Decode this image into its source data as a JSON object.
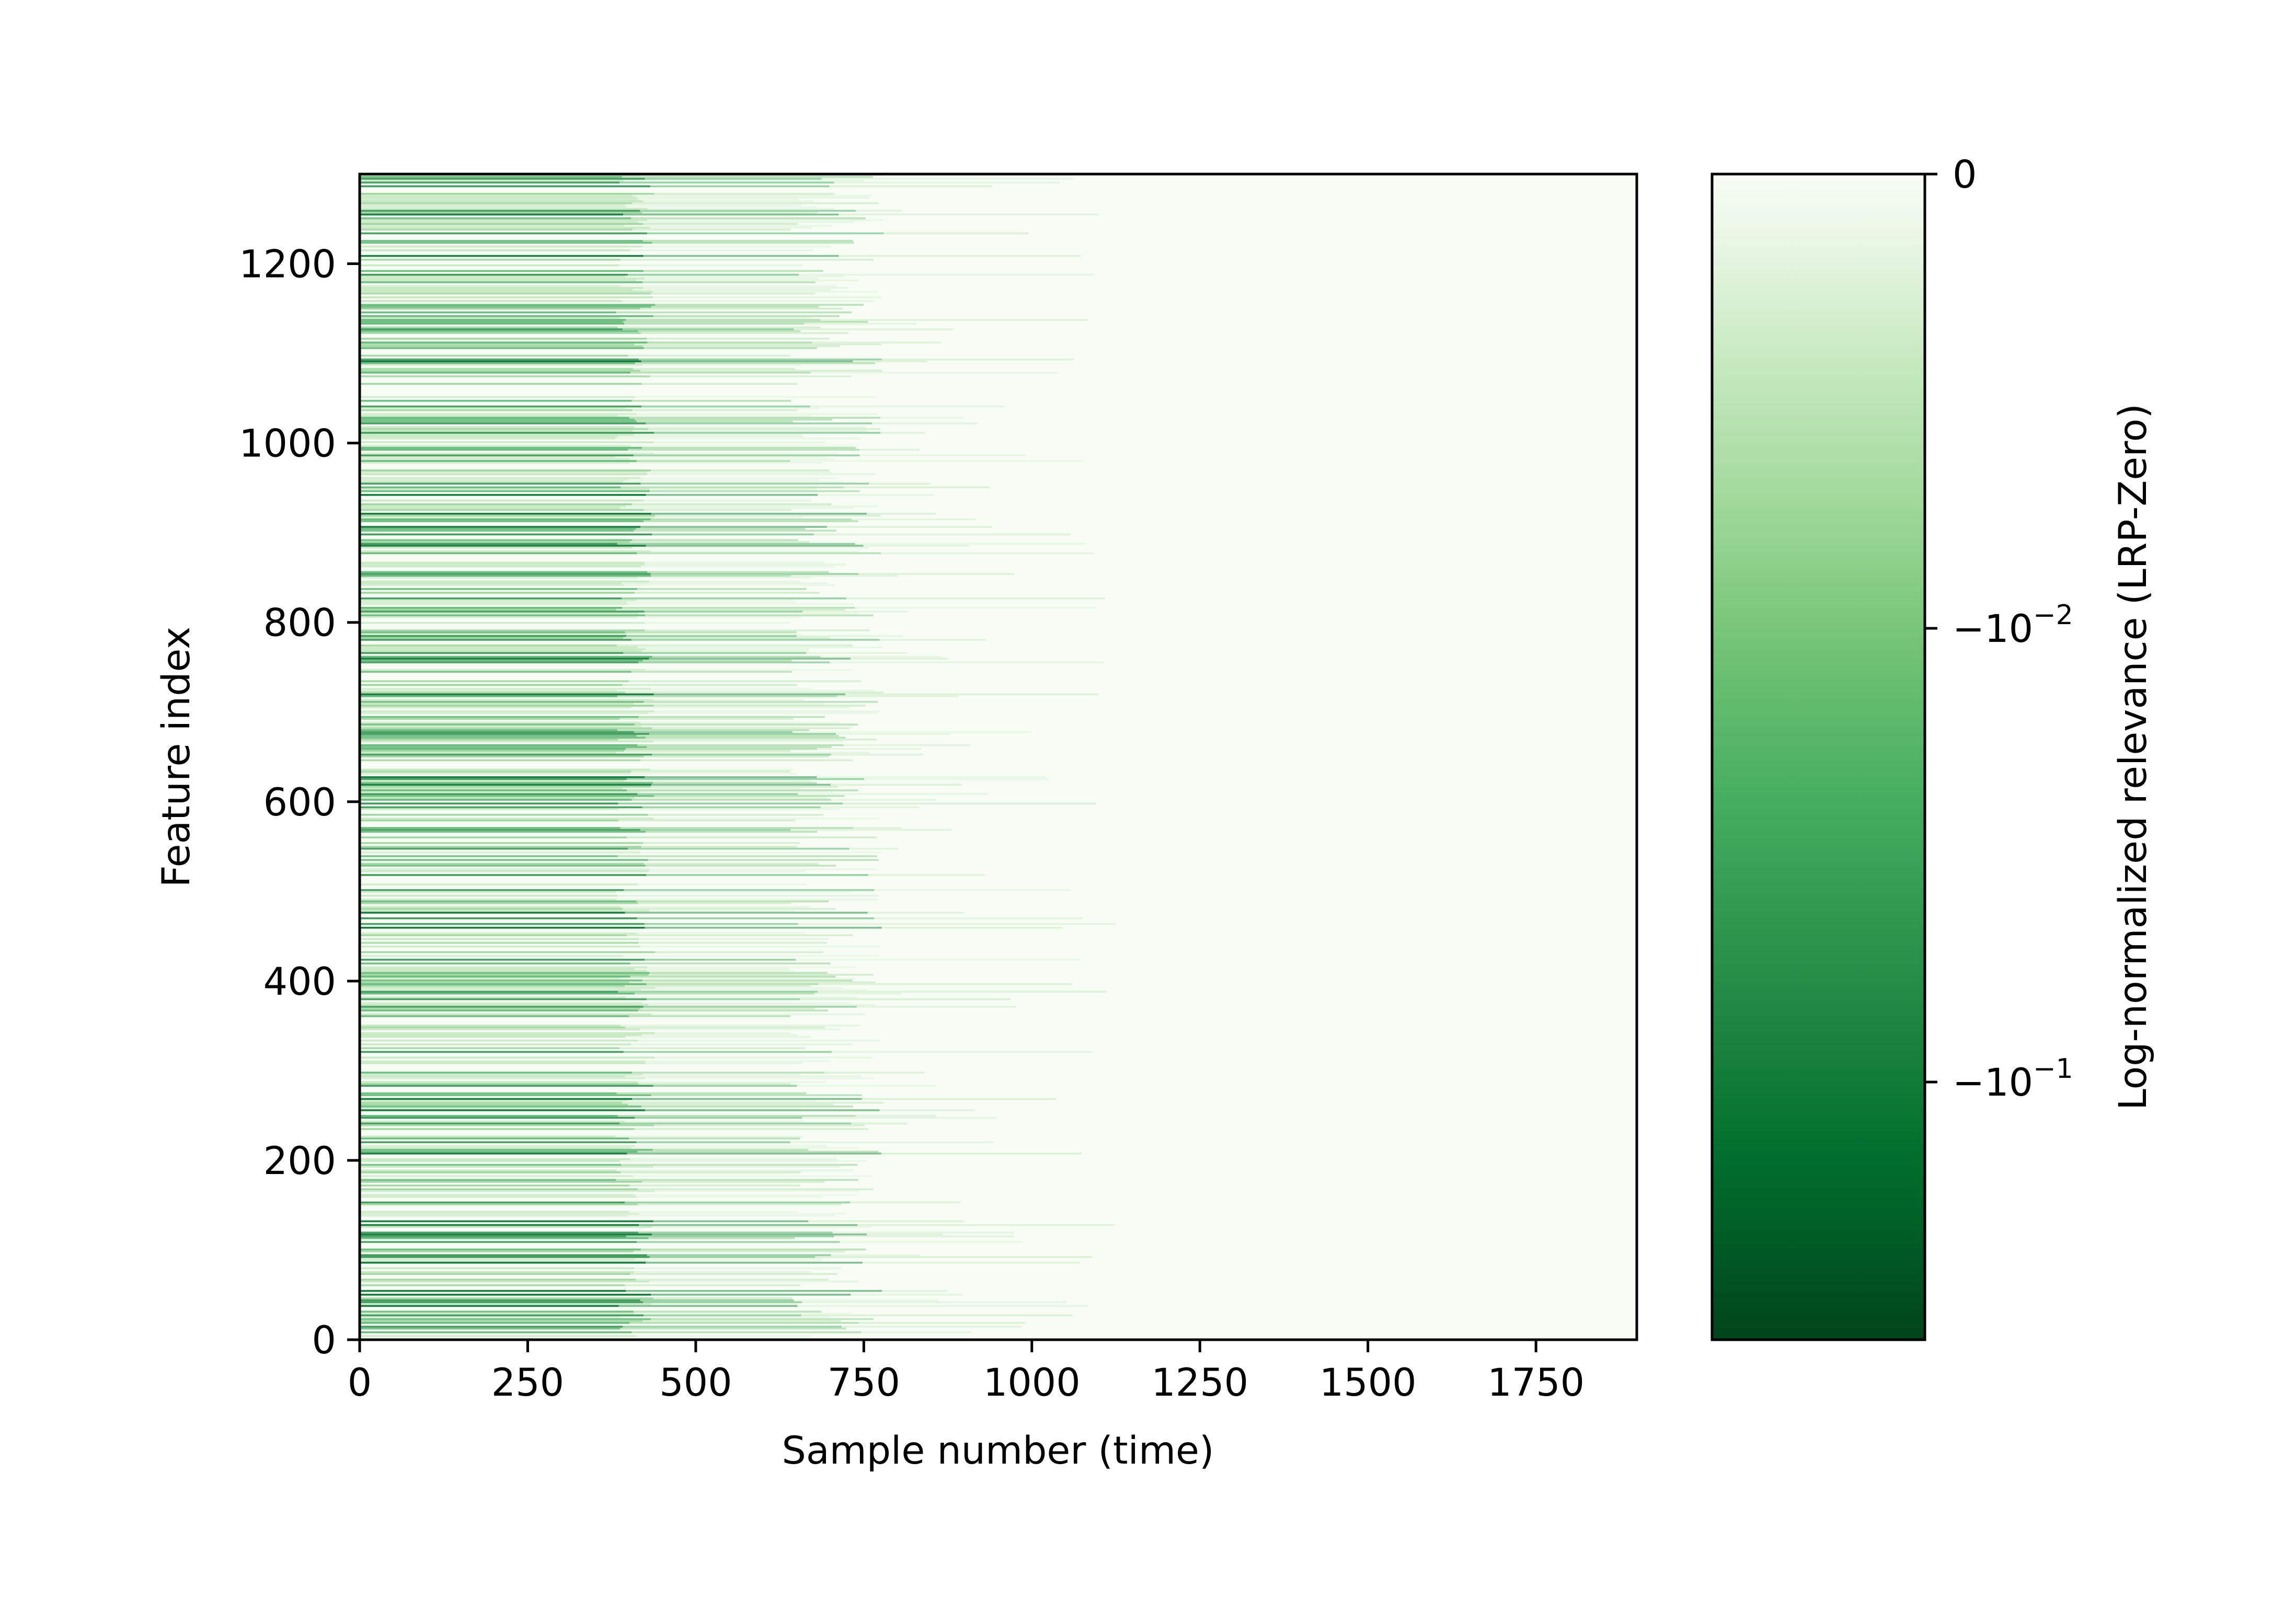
{
  "chart_data": {
    "type": "heatmap",
    "title": "",
    "xlabel": "Sample number (time)",
    "ylabel": "Feature index",
    "xlim": [
      0,
      1900
    ],
    "ylim": [
      0,
      1300
    ],
    "xticks": [
      0,
      250,
      500,
      750,
      1000,
      1250,
      1500,
      1750
    ],
    "xtick_labels": [
      "0",
      "250",
      "500",
      "750",
      "1000",
      "1250",
      "1500",
      "1750"
    ],
    "yticks": [
      0,
      200,
      400,
      600,
      800,
      1000,
      1200
    ],
    "ytick_labels": [
      "0",
      "200",
      "400",
      "600",
      "800",
      "1000",
      "1200"
    ],
    "colormap": "Greens_r",
    "colorbar": {
      "label": "Log-normalized relevance (LRP-Zero)",
      "scale": "symlog",
      "ticks": [
        {
          "value": 0,
          "base": "0",
          "exp": ""
        },
        {
          "value": -0.01,
          "base": "−10",
          "exp": "−2"
        },
        {
          "value": -0.1,
          "base": "−10",
          "exp": "−1"
        }
      ],
      "dark_color": "#00441b",
      "light_color": "#f7fcf5"
    },
    "description_regions": [
      {
        "x_range": [
          0,
          420
        ],
        "relevance": "high, dense striped rows"
      },
      {
        "x_range": [
          420,
          770
        ],
        "relevance": "moderate, fading"
      },
      {
        "x_range": [
          770,
          1100
        ],
        "relevance": "sparse faint rows"
      },
      {
        "x_range": [
          1100,
          1900
        ],
        "relevance": "near zero"
      }
    ]
  }
}
